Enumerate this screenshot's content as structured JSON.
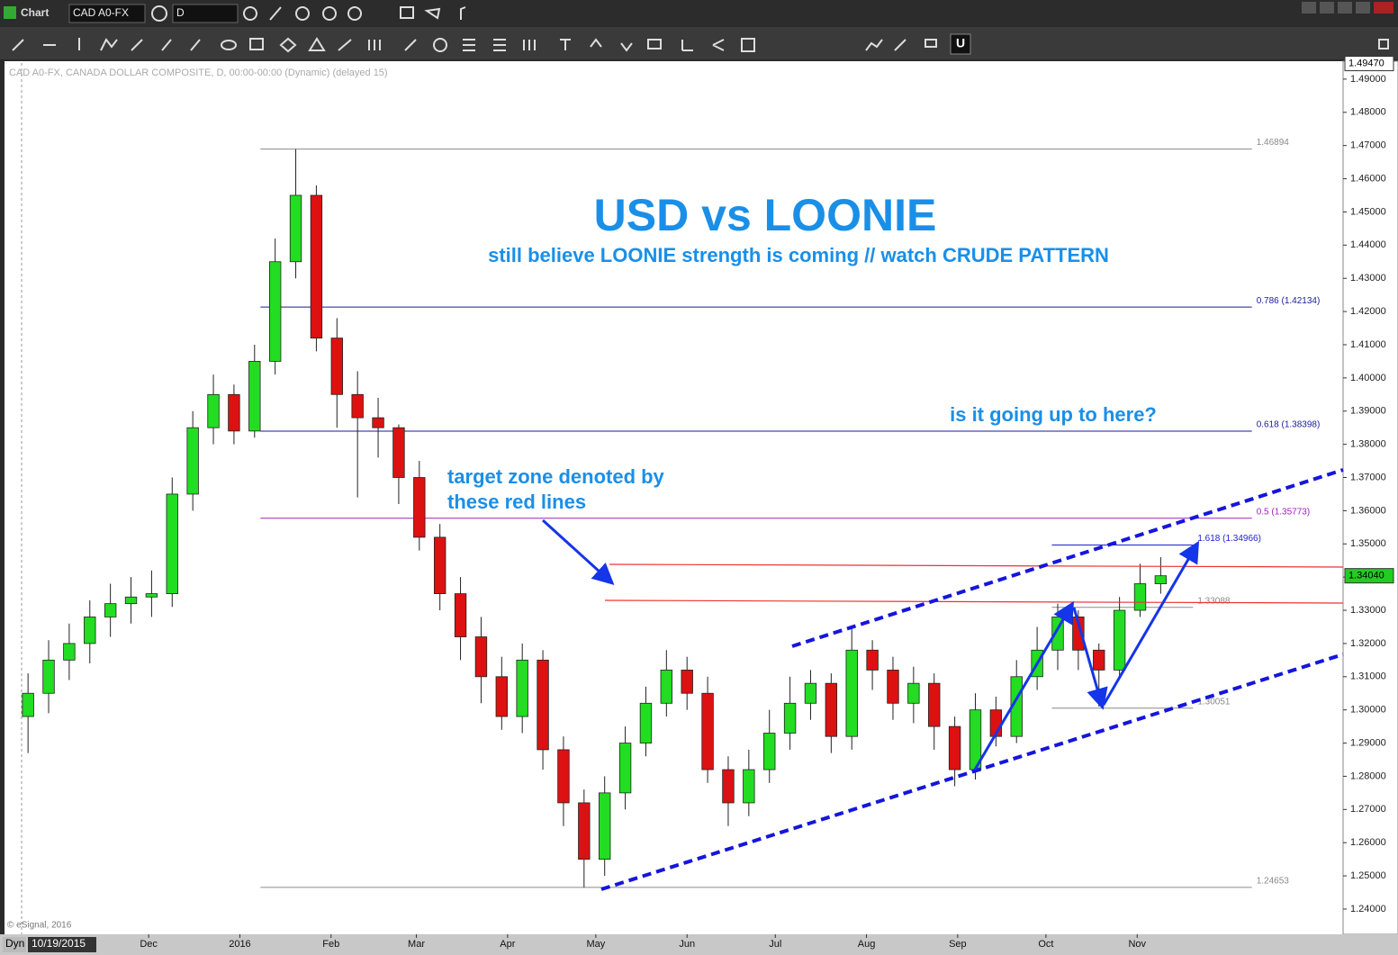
{
  "app": {
    "window_title": "Chart",
    "symbol": "CAD A0-FX",
    "interval": "D",
    "status_mode": "Dyn",
    "cursor_date": "10/19/2015"
  },
  "chart_data": {
    "type": "candlestick",
    "header": "CAD A0-FX, CANADA DOLLAR COMPOSITE, D, 00:00-00:00 (Dynamic) (delayed 15)",
    "copyright": "© eSignal, 2016",
    "title": "USD vs LOONIE",
    "subtitle": "still believe LOONIE strength is coming // watch CRUDE PATTERN",
    "annotations": [
      "is it going up to here?",
      "target zone denoted by",
      "these red lines"
    ],
    "up_color": "#22dd22",
    "down_color": "#dd1111",
    "x": [
      "2015-10-19",
      "2015-10-26",
      "2015-11-02",
      "2015-11-09",
      "2015-11-16",
      "2015-11-23",
      "2015-11-30",
      "2015-12-07",
      "2015-12-14",
      "2015-12-21",
      "2015-12-28",
      "2016-01-04",
      "2016-01-11",
      "2016-01-18",
      "2016-01-25",
      "2016-02-01",
      "2016-02-08",
      "2016-02-15",
      "2016-02-22",
      "2016-02-29",
      "2016-03-07",
      "2016-03-14",
      "2016-03-21",
      "2016-03-28",
      "2016-04-04",
      "2016-04-11",
      "2016-04-18",
      "2016-04-25",
      "2016-05-02",
      "2016-05-09",
      "2016-05-16",
      "2016-05-23",
      "2016-05-30",
      "2016-06-06",
      "2016-06-13",
      "2016-06-20",
      "2016-06-27",
      "2016-07-04",
      "2016-07-11",
      "2016-07-18",
      "2016-07-25",
      "2016-08-01",
      "2016-08-08",
      "2016-08-15",
      "2016-08-22",
      "2016-08-29",
      "2016-09-05",
      "2016-09-12",
      "2016-09-19",
      "2016-09-26",
      "2016-10-03",
      "2016-10-10",
      "2016-10-17",
      "2016-10-24",
      "2016-10-31",
      "2016-11-07"
    ],
    "open": [
      1.298,
      1.305,
      1.315,
      1.32,
      1.328,
      1.332,
      1.334,
      1.335,
      1.365,
      1.385,
      1.395,
      1.384,
      1.405,
      1.435,
      1.455,
      1.412,
      1.395,
      1.388,
      1.385,
      1.37,
      1.352,
      1.335,
      1.322,
      1.31,
      1.298,
      1.315,
      1.288,
      1.272,
      1.255,
      1.275,
      1.29,
      1.302,
      1.312,
      1.305,
      1.282,
      1.272,
      1.282,
      1.293,
      1.302,
      1.308,
      1.292,
      1.318,
      1.312,
      1.302,
      1.308,
      1.295,
      1.282,
      1.3,
      1.292,
      1.31,
      1.318,
      1.328,
      1.318,
      1.312,
      1.33,
      1.338
    ],
    "high": [
      1.311,
      1.321,
      1.326,
      1.333,
      1.338,
      1.34,
      1.342,
      1.37,
      1.39,
      1.401,
      1.398,
      1.41,
      1.442,
      1.4689,
      1.458,
      1.418,
      1.402,
      1.394,
      1.386,
      1.375,
      1.356,
      1.34,
      1.328,
      1.316,
      1.32,
      1.318,
      1.292,
      1.276,
      1.28,
      1.295,
      1.307,
      1.318,
      1.316,
      1.31,
      1.286,
      1.288,
      1.3,
      1.31,
      1.312,
      1.311,
      1.325,
      1.321,
      1.316,
      1.313,
      1.311,
      1.298,
      1.305,
      1.304,
      1.315,
      1.325,
      1.332,
      1.33,
      1.32,
      1.334,
      1.344,
      1.346
    ],
    "low": [
      1.287,
      1.299,
      1.309,
      1.314,
      1.322,
      1.326,
      1.328,
      1.331,
      1.36,
      1.38,
      1.38,
      1.382,
      1.401,
      1.43,
      1.408,
      1.385,
      1.364,
      1.376,
      1.362,
      1.348,
      1.33,
      1.315,
      1.302,
      1.294,
      1.293,
      1.282,
      1.265,
      1.2465,
      1.25,
      1.27,
      1.286,
      1.298,
      1.3,
      1.278,
      1.265,
      1.268,
      1.278,
      1.288,
      1.297,
      1.287,
      1.288,
      1.306,
      1.297,
      1.296,
      1.288,
      1.277,
      1.279,
      1.289,
      1.29,
      1.306,
      1.312,
      1.312,
      1.301,
      1.31,
      1.328,
      1.335
    ],
    "close": [
      1.305,
      1.315,
      1.32,
      1.328,
      1.332,
      1.334,
      1.335,
      1.365,
      1.385,
      1.395,
      1.384,
      1.405,
      1.435,
      1.455,
      1.412,
      1.395,
      1.388,
      1.385,
      1.37,
      1.352,
      1.335,
      1.322,
      1.31,
      1.298,
      1.315,
      1.288,
      1.272,
      1.255,
      1.275,
      1.29,
      1.302,
      1.312,
      1.305,
      1.282,
      1.272,
      1.282,
      1.293,
      1.302,
      1.308,
      1.292,
      1.318,
      1.312,
      1.302,
      1.308,
      1.295,
      1.282,
      1.3,
      1.292,
      1.31,
      1.318,
      1.328,
      1.318,
      1.312,
      1.33,
      1.338,
      1.3404
    ],
    "xlim": [
      "2015-10-13",
      "2017-01-10"
    ],
    "xticks": [
      {
        "value": "2015-12-01",
        "label": "Dec"
      },
      {
        "value": "2016-01-01",
        "label": "2016"
      },
      {
        "value": "2016-02-01",
        "label": "Feb"
      },
      {
        "value": "2016-03-01",
        "label": "Mar"
      },
      {
        "value": "2016-04-01",
        "label": "Apr"
      },
      {
        "value": "2016-05-01",
        "label": "May"
      },
      {
        "value": "2016-06-01",
        "label": "Jun"
      },
      {
        "value": "2016-07-01",
        "label": "Jul"
      },
      {
        "value": "2016-08-01",
        "label": "Aug"
      },
      {
        "value": "2016-09-01",
        "label": "Sep"
      },
      {
        "value": "2016-10-01",
        "label": "Oct"
      },
      {
        "value": "2016-11-01",
        "label": "Nov"
      }
    ],
    "ylim": [
      1.2324,
      1.4954
    ],
    "yticks": [
      {
        "value": 1.24,
        "label": "1.24000"
      },
      {
        "value": 1.25,
        "label": "1.25000"
      },
      {
        "value": 1.26,
        "label": "1.26000"
      },
      {
        "value": 1.27,
        "label": "1.27000"
      },
      {
        "value": 1.28,
        "label": "1.28000"
      },
      {
        "value": 1.29,
        "label": "1.29000"
      },
      {
        "value": 1.3,
        "label": "1.30000"
      },
      {
        "value": 1.31,
        "label": "1.31000"
      },
      {
        "value": 1.32,
        "label": "1.32000"
      },
      {
        "value": 1.33,
        "label": "1.33000"
      },
      {
        "value": 1.34,
        "label": "1.34000"
      },
      {
        "value": 1.35,
        "label": "1.35000"
      },
      {
        "value": 1.36,
        "label": "1.36000"
      },
      {
        "value": 1.37,
        "label": "1.37000"
      },
      {
        "value": 1.38,
        "label": "1.38000"
      },
      {
        "value": 1.39,
        "label": "1.39000"
      },
      {
        "value": 1.4,
        "label": "1.40000"
      },
      {
        "value": 1.41,
        "label": "1.41000"
      },
      {
        "value": 1.42,
        "label": "1.42000"
      },
      {
        "value": 1.43,
        "label": "1.43000"
      },
      {
        "value": 1.44,
        "label": "1.44000"
      },
      {
        "value": 1.45,
        "label": "1.45000"
      },
      {
        "value": 1.46,
        "label": "1.46000"
      },
      {
        "value": 1.47,
        "label": "1.47000"
      },
      {
        "value": 1.48,
        "label": "1.48000"
      },
      {
        "value": 1.49,
        "label": "1.49000"
      }
    ],
    "levels": [
      {
        "label": "1.46894",
        "value": 1.46894,
        "color": "#8a8a8a",
        "from": "2016-01-08",
        "to": "2016-12-10"
      },
      {
        "label": "0.786 (1.42134)",
        "value": 1.42134,
        "color": "#1a1a9a",
        "from": "2016-01-08",
        "to": "2016-12-10"
      },
      {
        "label": "0.618 (1.38398)",
        "value": 1.38398,
        "color": "#1a1a9a",
        "from": "2016-01-08",
        "to": "2016-12-10"
      },
      {
        "label": "0.5 (1.35773)",
        "value": 1.35773,
        "color": "#a020c0",
        "from": "2016-01-08",
        "to": "2016-12-10"
      },
      {
        "label": "1.618 (1.34966)",
        "value": 1.34966,
        "color": "#2020d0",
        "from": "2016-10-03",
        "to": "2016-11-20"
      },
      {
        "label": "1.33088",
        "value": 1.33088,
        "color": "#8a8a8a",
        "from": "2016-10-03",
        "to": "2016-11-20"
      },
      {
        "label": "1.30051",
        "value": 1.30051,
        "color": "#8a8a8a",
        "from": "2016-10-03",
        "to": "2016-11-20"
      },
      {
        "label": "1.24653",
        "value": 1.24653,
        "color": "#8a8a8a",
        "from": "2016-01-08",
        "to": "2016-12-10"
      }
    ],
    "price_markers": [
      {
        "value": 1.4947,
        "label": "1.49470",
        "color": "#ffffff",
        "text_color": "#000000"
      },
      {
        "value": 1.3404,
        "label": "1.34040",
        "color": "#22cc22",
        "text_color": "#000000"
      }
    ]
  }
}
